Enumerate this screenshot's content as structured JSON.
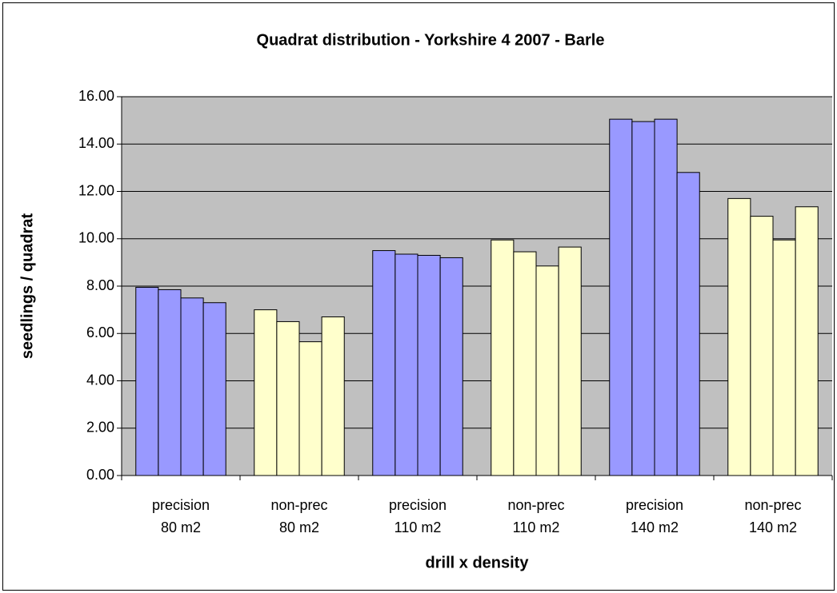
{
  "chart_data": {
    "type": "grouped-bar",
    "title": "Quadrat distribution - Yorkshire 4  2007 - Barle",
    "x_label": "drill x density",
    "y_label": "seedlings / quadrat",
    "categories": [
      [
        "precision",
        "80 m2"
      ],
      [
        "non-prec",
        "80 m2"
      ],
      [
        "precision",
        "110 m2"
      ],
      [
        "non-prec",
        "110 m2"
      ],
      [
        "precision",
        "140 m2"
      ],
      [
        "non-prec",
        "140 m2"
      ]
    ],
    "values": [
      [
        7.95,
        7.85,
        7.5,
        7.3
      ],
      [
        7.0,
        6.5,
        5.65,
        6.7
      ],
      [
        9.5,
        9.35,
        9.3,
        9.2
      ],
      [
        9.95,
        9.45,
        8.85,
        9.65
      ],
      [
        15.05,
        14.95,
        15.05,
        12.8
      ],
      [
        11.7,
        10.95,
        9.95,
        11.35
      ]
    ],
    "colors": [
      "#9999ff",
      "#ffffcc",
      "#9999ff",
      "#ffffcc",
      "#9999ff",
      "#ffffcc"
    ],
    "ylim": [
      0,
      16
    ],
    "yticks": [
      {
        "value": 0,
        "label": "0.00"
      },
      {
        "value": 2,
        "label": "2.00"
      },
      {
        "value": 4,
        "label": "4.00"
      },
      {
        "value": 6,
        "label": "6.00"
      },
      {
        "value": 8,
        "label": "8.00"
      },
      {
        "value": 10,
        "label": "10.00"
      },
      {
        "value": 12,
        "label": "12.00"
      },
      {
        "value": 14,
        "label": "14.00"
      },
      {
        "value": 16,
        "label": "16.00"
      }
    ],
    "grid": true,
    "plot_background": "#c0c0c0"
  }
}
